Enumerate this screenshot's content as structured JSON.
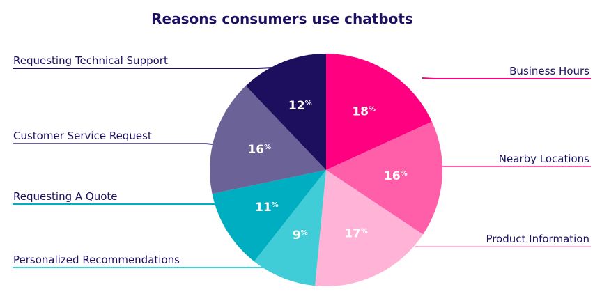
{
  "chart_data": {
    "type": "pie",
    "title": "Reasons consumers use chatbots",
    "unit_symbol": "%",
    "slices": [
      {
        "label": "Business Hours",
        "value": 18,
        "color": "#ff0080"
      },
      {
        "label": "Nearby Locations",
        "value": 16,
        "color": "#ff5fa8"
      },
      {
        "label": "Product Information",
        "value": 17,
        "color": "#ffb3d6"
      },
      {
        "label": "Personalized Recommendations",
        "value": 9,
        "color": "#40cdd8"
      },
      {
        "label": "Requesting A Quote",
        "value": 11,
        "color": "#00aec2"
      },
      {
        "label": "Customer Service Request",
        "value": 16,
        "color": "#6b6398"
      },
      {
        "label": "Requesting Technical Support",
        "value": 12,
        "color": "#1e0f5e"
      }
    ],
    "legend_placement": "sides"
  }
}
